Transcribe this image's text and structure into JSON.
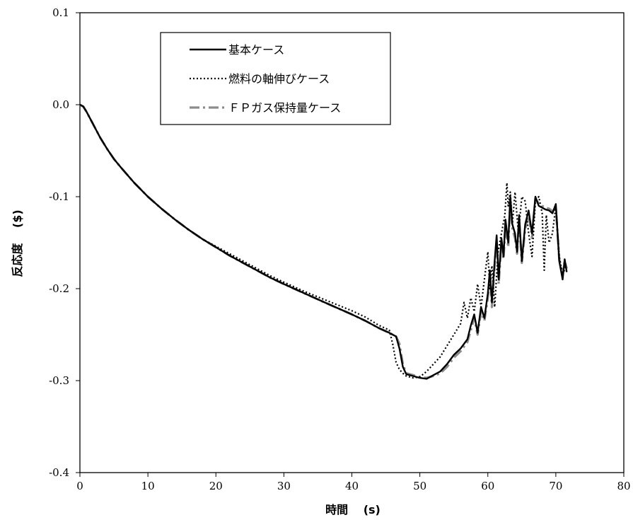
{
  "chart_data": {
    "type": "line",
    "title": "",
    "xlabel": "時間　 (s)",
    "ylabel": "反応度　 ($)",
    "xlim": [
      0,
      80
    ],
    "ylim": [
      -0.4,
      0.1
    ],
    "xticks": [
      "0",
      "10",
      "20",
      "30",
      "40",
      "50",
      "60",
      "70",
      "80"
    ],
    "xtick_values": [
      0,
      10,
      20,
      30,
      40,
      50,
      60,
      70,
      80
    ],
    "yticks": [
      "0.1",
      "0.0",
      "-0.1",
      "-0.2",
      "-0.3",
      "-0.4"
    ],
    "ytick_values": [
      0.1,
      0.0,
      -0.1,
      -0.2,
      -0.3,
      -0.4
    ],
    "grid": false,
    "legend_position": "top-left",
    "series": [
      {
        "name": "基本ケース",
        "color": "#000000",
        "style": "solid",
        "x": [
          0,
          0.5,
          1,
          2,
          3,
          4,
          5,
          6,
          8,
          10,
          12,
          14,
          16,
          18,
          20,
          22,
          25,
          28,
          30,
          33,
          36,
          40,
          42,
          44,
          45.5,
          46.5,
          47,
          47.5,
          48,
          49,
          50,
          51,
          52,
          53,
          54,
          55,
          56,
          57,
          57.5,
          58,
          58.5,
          59,
          59.5,
          60,
          60.3,
          60.6,
          61,
          61.3,
          61.6,
          62,
          62.3,
          62.6,
          63,
          63.3,
          63.6,
          64,
          64.3,
          64.6,
          65,
          65.5,
          66,
          66.5,
          67,
          67.5,
          68,
          68.5,
          69,
          69.5,
          70,
          70.5,
          71,
          71.3,
          71.6
        ],
        "y": [
          0,
          -0.002,
          -0.008,
          -0.022,
          -0.036,
          -0.048,
          -0.059,
          -0.068,
          -0.085,
          -0.1,
          -0.113,
          -0.125,
          -0.136,
          -0.146,
          -0.155,
          -0.164,
          -0.176,
          -0.188,
          -0.195,
          -0.205,
          -0.215,
          -0.228,
          -0.235,
          -0.243,
          -0.248,
          -0.252,
          -0.265,
          -0.285,
          -0.293,
          -0.295,
          -0.297,
          -0.298,
          -0.294,
          -0.29,
          -0.282,
          -0.272,
          -0.265,
          -0.255,
          -0.24,
          -0.228,
          -0.248,
          -0.22,
          -0.232,
          -0.205,
          -0.18,
          -0.215,
          -0.17,
          -0.142,
          -0.19,
          -0.145,
          -0.165,
          -0.125,
          -0.15,
          -0.1,
          -0.13,
          -0.14,
          -0.16,
          -0.12,
          -0.17,
          -0.13,
          -0.115,
          -0.14,
          -0.1,
          -0.11,
          -0.112,
          -0.114,
          -0.115,
          -0.118,
          -0.108,
          -0.17,
          -0.19,
          -0.168,
          -0.182
        ]
      },
      {
        "name": "燃料の軸伸びケース",
        "color": "#000000",
        "style": "dotted",
        "x": [
          0,
          0.5,
          1,
          2,
          3,
          4,
          5,
          6,
          8,
          10,
          12,
          14,
          16,
          18,
          20,
          22,
          25,
          28,
          30,
          33,
          36,
          40,
          42,
          44,
          45.5,
          46,
          46.5,
          47,
          47.5,
          48,
          49,
          50,
          51,
          52,
          53,
          54,
          55,
          56,
          56.5,
          57,
          57.5,
          58,
          58.5,
          59,
          59.5,
          60,
          60.3,
          60.6,
          61,
          61.5,
          62,
          62.5,
          62.8,
          63,
          63.3,
          63.6,
          64,
          64.5,
          65,
          65.5,
          66,
          66.5,
          67,
          67.5,
          68,
          68.3,
          68.6,
          69,
          69.5,
          70,
          70.5,
          71,
          71.5
        ],
        "y": [
          0,
          -0.002,
          -0.008,
          -0.022,
          -0.036,
          -0.048,
          -0.059,
          -0.068,
          -0.085,
          -0.1,
          -0.113,
          -0.125,
          -0.136,
          -0.146,
          -0.154,
          -0.162,
          -0.174,
          -0.186,
          -0.193,
          -0.203,
          -0.212,
          -0.224,
          -0.231,
          -0.24,
          -0.245,
          -0.26,
          -0.28,
          -0.288,
          -0.292,
          -0.295,
          -0.297,
          -0.296,
          -0.29,
          -0.282,
          -0.274,
          -0.262,
          -0.25,
          -0.238,
          -0.215,
          -0.232,
          -0.21,
          -0.225,
          -0.195,
          -0.22,
          -0.19,
          -0.16,
          -0.2,
          -0.175,
          -0.22,
          -0.16,
          -0.14,
          -0.12,
          -0.085,
          -0.11,
          -0.095,
          -0.13,
          -0.095,
          -0.14,
          -0.1,
          -0.105,
          -0.14,
          -0.165,
          -0.105,
          -0.1,
          -0.118,
          -0.18,
          -0.12,
          -0.15,
          -0.14,
          -0.11,
          -0.165,
          -0.185,
          -0.175
        ]
      },
      {
        "name": "ＦＰガス保持量ケース",
        "color": "#8c8c8c",
        "style": "dash-dot",
        "x": [
          0,
          0.5,
          1,
          2,
          3,
          4,
          5,
          6,
          8,
          10,
          12,
          14,
          16,
          18,
          20,
          22,
          25,
          28,
          30,
          33,
          36,
          40,
          42,
          44,
          45.5,
          46.5,
          47,
          47.5,
          48,
          49,
          50,
          51,
          52,
          53,
          54,
          55,
          56,
          57,
          57.5,
          58,
          58.5,
          59,
          59.5,
          60,
          60.3,
          60.6,
          61,
          61.3,
          61.6,
          62,
          62.3,
          62.6,
          63,
          63.3,
          63.6,
          64,
          64.3,
          64.6,
          65,
          65.5,
          66,
          66.5,
          67,
          67.5,
          68,
          68.5,
          69,
          69.5,
          70,
          70.5,
          71,
          71.3,
          71.6
        ],
        "y": [
          0,
          -0.002,
          -0.008,
          -0.022,
          -0.036,
          -0.048,
          -0.059,
          -0.068,
          -0.085,
          -0.1,
          -0.113,
          -0.125,
          -0.136,
          -0.146,
          -0.155,
          -0.164,
          -0.176,
          -0.188,
          -0.195,
          -0.205,
          -0.215,
          -0.228,
          -0.235,
          -0.243,
          -0.248,
          -0.252,
          -0.26,
          -0.282,
          -0.292,
          -0.294,
          -0.296,
          -0.297,
          -0.295,
          -0.292,
          -0.285,
          -0.275,
          -0.268,
          -0.258,
          -0.245,
          -0.232,
          -0.25,
          -0.225,
          -0.235,
          -0.21,
          -0.185,
          -0.22,
          -0.175,
          -0.148,
          -0.195,
          -0.15,
          -0.168,
          -0.13,
          -0.155,
          -0.105,
          -0.135,
          -0.145,
          -0.162,
          -0.125,
          -0.172,
          -0.135,
          -0.118,
          -0.145,
          -0.102,
          -0.108,
          -0.11,
          -0.112,
          -0.113,
          -0.116,
          -0.112,
          -0.168,
          -0.185,
          -0.17,
          -0.178
        ]
      }
    ]
  }
}
